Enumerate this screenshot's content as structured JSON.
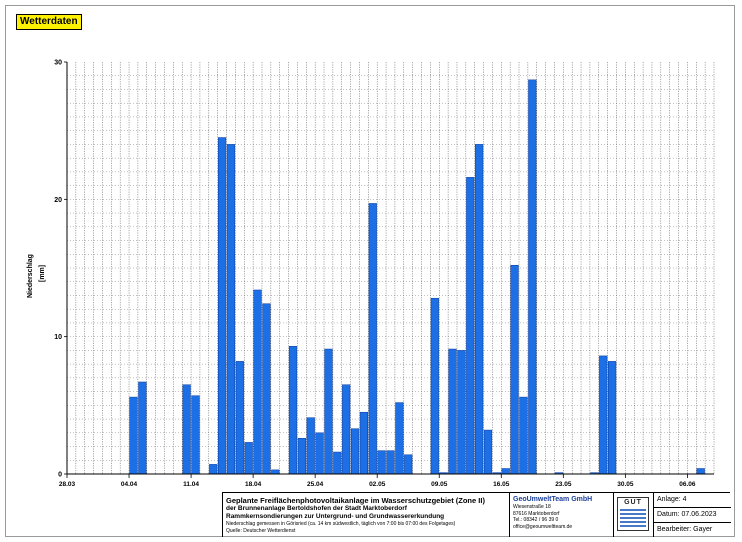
{
  "tag_label": "Wetterdaten",
  "chart_data": {
    "type": "bar",
    "ylabel_line1": "Niederschlag",
    "ylabel_line2": "[mm]",
    "ylim": [
      0,
      30
    ],
    "y_ticks": [
      0,
      10,
      20,
      30
    ],
    "x_tick_labels": [
      "28.03",
      "04.04",
      "11.04",
      "18.04",
      "25.04",
      "02.05",
      "09.05",
      "16.05",
      "23.05",
      "30.05",
      "06.06"
    ],
    "grid": true,
    "bar_color": "#1d6fe6",
    "values": [
      0,
      0,
      0,
      0,
      0,
      0,
      0,
      5.6,
      6.7,
      0,
      0,
      0,
      0,
      6.5,
      5.7,
      0,
      0.7,
      24.5,
      24.0,
      8.2,
      2.3,
      13.4,
      12.4,
      0.3,
      0,
      9.3,
      2.6,
      4.1,
      3.0,
      9.1,
      1.6,
      6.5,
      3.3,
      4.5,
      19.7,
      1.7,
      1.7,
      5.2,
      1.4,
      0,
      0,
      12.8,
      0.1,
      9.1,
      9.0,
      21.6,
      24.0,
      3.2,
      0.1,
      0.4,
      15.2,
      5.6,
      28.7,
      0,
      0,
      0.1,
      0,
      0,
      0,
      0.1,
      8.6,
      8.2,
      0,
      0,
      0,
      0,
      0,
      0,
      0,
      0,
      0,
      0.4,
      0
    ]
  },
  "footer": {
    "project_title": "Geplante Freiflächenphotovoltaikanlage im Wasserschutzgebiet (Zone II)",
    "project_line2": "der Brunnenanlage Bertoldshofen der Stadt Marktoberdorf",
    "project_line3": "Rammkernsondierungen zur Untergrund- und Grundwassererkundung",
    "note_line": "Niederschlag gemessen in Görisried (ca. 14 km südwestlich, täglich von 7:00 bis 07:00 des Folgetages)",
    "source_line": "Quelle: Deutscher Wetterdienst",
    "company_name": "GeoUmweltTeam GmbH",
    "company_street": "Wiesenstraße 18",
    "company_city": "87616 Marktoberdorf",
    "company_phone": "Tel.: 08342 / 96 39 0",
    "company_email": "office@geoumweltteam.de",
    "logo_text": "GUT",
    "anlage": "Anlage: 4",
    "datum": "Datum: 07.06.2023",
    "bearbeiter": "Bearbeiter: Gayer"
  }
}
